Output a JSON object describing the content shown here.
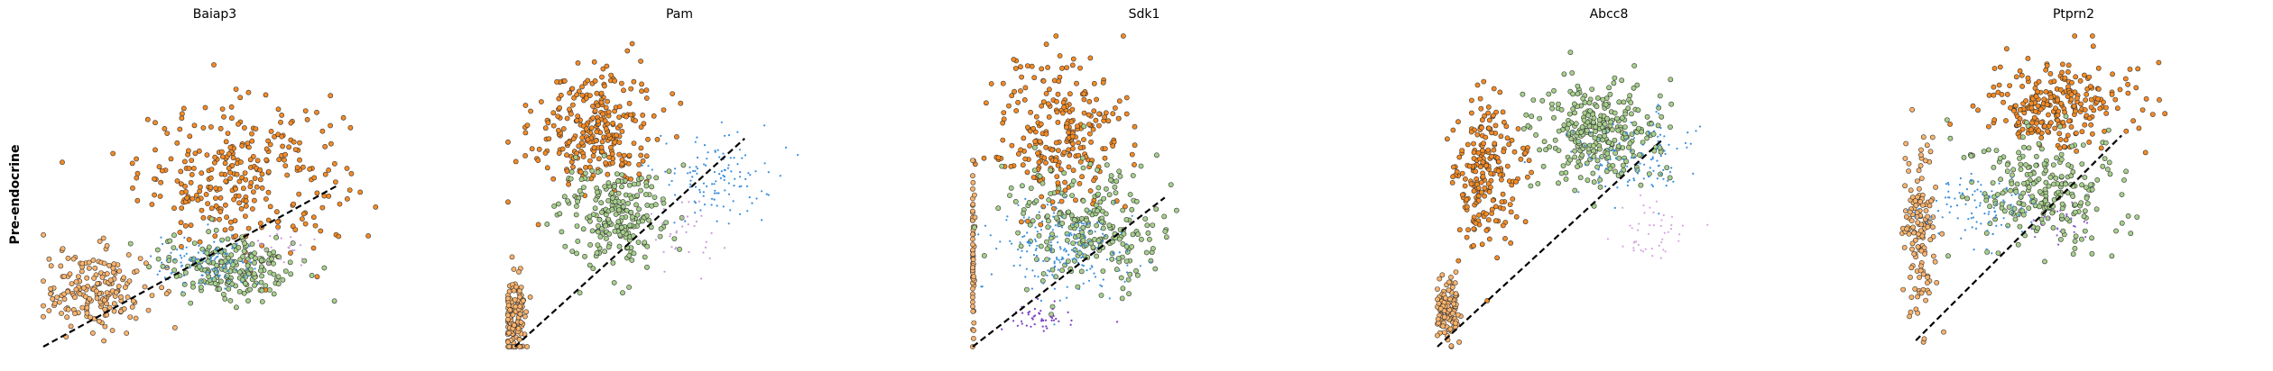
{
  "figure": {
    "row_label": "Pre-endocrine"
  },
  "chart_data": [
    {
      "type": "scatter",
      "title": "Baiap3",
      "xlabel": "",
      "ylabel": "Pre-endocrine",
      "xlim": [
        0,
        1
      ],
      "ylim": [
        0,
        1
      ],
      "grid": false,
      "legend": "none",
      "axes_visible": false,
      "fit_line": {
        "x": [
          0.0,
          0.86
        ],
        "y": [
          0.0,
          0.52
        ],
        "style": "dashed",
        "color": "#000000"
      },
      "clusters": [
        {
          "color": "#f58a22",
          "shape": "circle",
          "n": 300,
          "center": [
            0.58,
            0.55
          ],
          "spread": [
            0.25,
            0.2
          ]
        },
        {
          "color": "#fbb36b",
          "shape": "circle",
          "n": 180,
          "center": [
            0.15,
            0.18
          ],
          "spread": [
            0.13,
            0.11
          ]
        },
        {
          "color": "#a6d08b",
          "shape": "circle",
          "n": 200,
          "center": [
            0.55,
            0.26
          ],
          "spread": [
            0.17,
            0.09
          ]
        },
        {
          "color": "#3a8fdc",
          "shape": "dot",
          "n": 110,
          "center": [
            0.48,
            0.26
          ],
          "spread": [
            0.13,
            0.07
          ]
        },
        {
          "color": "#c89ad8",
          "shape": "dot",
          "n": 25,
          "center": [
            0.7,
            0.32
          ],
          "spread": [
            0.08,
            0.06
          ]
        }
      ]
    },
    {
      "type": "scatter",
      "title": "Pam",
      "xlabel": "",
      "ylabel": "",
      "xlim": [
        0,
        1
      ],
      "ylim": [
        0,
        1
      ],
      "grid": false,
      "legend": "none",
      "axes_visible": false,
      "fit_line": {
        "x": [
          0.02,
          0.69
        ],
        "y": [
          0.0,
          0.67
        ],
        "style": "dashed",
        "color": "#000000"
      },
      "clusters": [
        {
          "color": "#f58a22",
          "shape": "circle",
          "n": 280,
          "center": [
            0.25,
            0.7
          ],
          "spread": [
            0.15,
            0.17
          ]
        },
        {
          "color": "#fbb36b",
          "shape": "circle",
          "n": 130,
          "center": [
            0.02,
            0.1
          ],
          "spread": [
            0.03,
            0.1
          ]
        },
        {
          "color": "#a6d08b",
          "shape": "circle",
          "n": 230,
          "center": [
            0.3,
            0.42
          ],
          "spread": [
            0.13,
            0.13
          ]
        },
        {
          "color": "#3a8fdc",
          "shape": "dot",
          "n": 120,
          "center": [
            0.6,
            0.55
          ],
          "spread": [
            0.14,
            0.12
          ]
        },
        {
          "color": "#c89ad8",
          "shape": "dot",
          "n": 35,
          "center": [
            0.5,
            0.38
          ],
          "spread": [
            0.1,
            0.1
          ]
        }
      ]
    },
    {
      "type": "scatter",
      "title": "Sdk1",
      "xlabel": "",
      "ylabel": "",
      "xlim": [
        0,
        1
      ],
      "ylim": [
        0,
        1
      ],
      "grid": false,
      "legend": "none",
      "axes_visible": false,
      "fit_line": {
        "x": [
          0.0,
          0.56
        ],
        "y": [
          0.0,
          0.48
        ],
        "style": "dashed",
        "color": "#000000"
      },
      "clusters": [
        {
          "color": "#f58a22",
          "shape": "circle",
          "n": 260,
          "center": [
            0.26,
            0.68
          ],
          "spread": [
            0.16,
            0.21
          ]
        },
        {
          "color": "#fbb36b",
          "shape": "circle",
          "n": 60,
          "center": [
            0.0,
            0.3
          ],
          "spread": [
            0.005,
            0.28
          ]
        },
        {
          "color": "#a6d08b",
          "shape": "circle",
          "n": 240,
          "center": [
            0.33,
            0.38
          ],
          "spread": [
            0.19,
            0.17
          ]
        },
        {
          "color": "#3a8fdc",
          "shape": "dot",
          "n": 190,
          "center": [
            0.25,
            0.32
          ],
          "spread": [
            0.16,
            0.12
          ]
        },
        {
          "color": "#7a3fc0",
          "shape": "dot",
          "n": 45,
          "center": [
            0.2,
            0.09
          ],
          "spread": [
            0.09,
            0.04
          ]
        }
      ]
    },
    {
      "type": "scatter",
      "title": "Abcc8",
      "xlabel": "",
      "ylabel": "",
      "xlim": [
        0,
        1
      ],
      "ylim": [
        0,
        1
      ],
      "grid": false,
      "legend": "none",
      "axes_visible": false,
      "fit_line": {
        "x": [
          0.0,
          0.66
        ],
        "y": [
          0.0,
          0.67
        ],
        "style": "dashed",
        "color": "#000000"
      },
      "clusters": [
        {
          "color": "#f58a22",
          "shape": "circle",
          "n": 220,
          "center": [
            0.14,
            0.55
          ],
          "spread": [
            0.08,
            0.2
          ]
        },
        {
          "color": "#fbb36b",
          "shape": "circle",
          "n": 110,
          "center": [
            0.03,
            0.12
          ],
          "spread": [
            0.03,
            0.09
          ]
        },
        {
          "color": "#a6d08b",
          "shape": "circle",
          "n": 290,
          "center": [
            0.47,
            0.68
          ],
          "spread": [
            0.15,
            0.14
          ]
        },
        {
          "color": "#3a8fdc",
          "shape": "dot",
          "n": 110,
          "center": [
            0.56,
            0.62
          ],
          "spread": [
            0.16,
            0.12
          ]
        },
        {
          "color": "#d7a6e0",
          "shape": "dot",
          "n": 45,
          "center": [
            0.62,
            0.36
          ],
          "spread": [
            0.1,
            0.08
          ]
        }
      ]
    },
    {
      "type": "scatter",
      "title": "Ptprn2",
      "xlabel": "",
      "ylabel": "",
      "xlim": [
        0,
        1
      ],
      "ylim": [
        0,
        1
      ],
      "grid": false,
      "legend": "none",
      "axes_visible": false,
      "fit_line": {
        "x": [
          0.04,
          0.64
        ],
        "y": [
          0.02,
          0.68
        ],
        "style": "dashed",
        "color": "#000000"
      },
      "clusters": [
        {
          "color": "#f58a22",
          "shape": "circle",
          "n": 260,
          "center": [
            0.45,
            0.78
          ],
          "spread": [
            0.18,
            0.12
          ]
        },
        {
          "color": "#fbb36b",
          "shape": "circle",
          "n": 140,
          "center": [
            0.05,
            0.38
          ],
          "spread": [
            0.04,
            0.26
          ]
        },
        {
          "color": "#a6d08b",
          "shape": "circle",
          "n": 240,
          "center": [
            0.4,
            0.5
          ],
          "spread": [
            0.18,
            0.15
          ]
        },
        {
          "color": "#3a8fdc",
          "shape": "dot",
          "n": 100,
          "center": [
            0.22,
            0.45
          ],
          "spread": [
            0.12,
            0.1
          ]
        },
        {
          "color": "#8a5cc8",
          "shape": "dot",
          "n": 25,
          "center": [
            0.45,
            0.4
          ],
          "spread": [
            0.08,
            0.06
          ]
        }
      ]
    }
  ]
}
